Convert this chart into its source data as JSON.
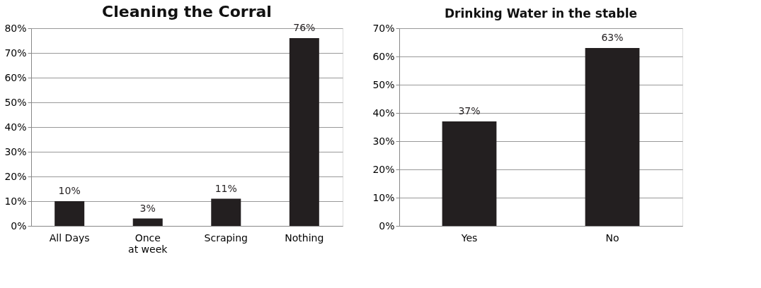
{
  "chart_data": [
    {
      "type": "bar",
      "title": "Cleaning the Corral",
      "categories": [
        "All Days",
        "Once  at week",
        "Scraping",
        "Nothing"
      ],
      "values": [
        10,
        3,
        11,
        76
      ],
      "color": "#231f20",
      "value_labels": [
        "10%",
        "3%",
        "11%",
        "76%"
      ],
      "ylim": [
        0,
        80
      ],
      "yticks": [
        {
          "value": 0,
          "label": "0%"
        },
        {
          "value": 10,
          "label": "10%"
        },
        {
          "value": 20,
          "label": "20%"
        },
        {
          "value": 30,
          "label": "30%"
        },
        {
          "value": 40,
          "label": "40%"
        },
        {
          "value": 50,
          "label": "50%"
        },
        {
          "value": 60,
          "label": "60%"
        },
        {
          "value": 70,
          "label": "70%"
        },
        {
          "value": 80,
          "label": "80%"
        }
      ],
      "grid": "y"
    },
    {
      "type": "bar",
      "title": "Drinking Water in the stable",
      "categories": [
        "Yes",
        "No"
      ],
      "values": [
        37,
        63
      ],
      "color": "#231f20",
      "value_labels": [
        "37%",
        "63%"
      ],
      "ylim": [
        0,
        70
      ],
      "yticks": [
        {
          "value": 0,
          "label": "0%"
        },
        {
          "value": 10,
          "label": "10%"
        },
        {
          "value": 20,
          "label": "20%"
        },
        {
          "value": 30,
          "label": "30%"
        },
        {
          "value": 40,
          "label": "40%"
        },
        {
          "value": 50,
          "label": "50%"
        },
        {
          "value": 60,
          "label": "60%"
        },
        {
          "value": 70,
          "label": "70%"
        }
      ],
      "grid": "y"
    }
  ]
}
